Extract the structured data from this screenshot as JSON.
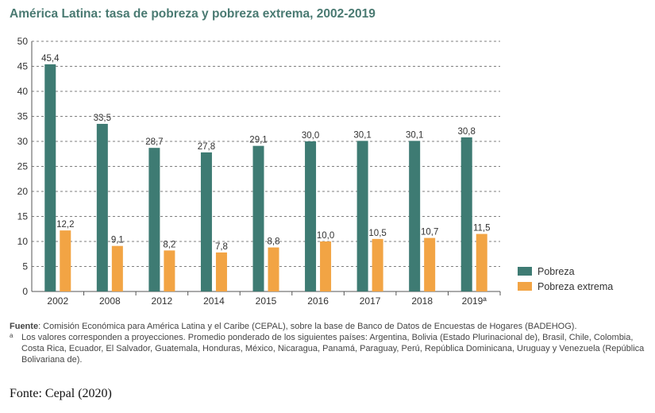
{
  "title": "América Latina: tasa de pobreza y pobreza extrema, 2002-2019",
  "chart_data": {
    "type": "bar",
    "categories": [
      "2002",
      "2008",
      "2012",
      "2014",
      "2015",
      "2016",
      "2017",
      "2018",
      "2019ª"
    ],
    "series": [
      {
        "name": "Pobreza",
        "color": "#3e7b73",
        "values": [
          45.4,
          33.5,
          28.7,
          27.8,
          29.1,
          30.0,
          30.1,
          30.1,
          30.8
        ],
        "labels": [
          "45,4",
          "33,5",
          "28,7",
          "27,8",
          "29,1",
          "30,0",
          "30,1",
          "30,1",
          "30,8"
        ]
      },
      {
        "name": "Pobreza extrema",
        "color": "#f2a444",
        "values": [
          12.2,
          9.1,
          8.2,
          7.8,
          8.8,
          10.0,
          10.5,
          10.7,
          11.5
        ],
        "labels": [
          "12,2",
          "9,1",
          "8,2",
          "7,8",
          "8,8",
          "10,0",
          "10,5",
          "10,7",
          "11,5"
        ]
      }
    ],
    "ylim": [
      0,
      50
    ],
    "yticks": [
      0,
      5,
      10,
      15,
      20,
      25,
      30,
      35,
      40,
      45,
      50
    ],
    "grid": true,
    "legend_position": "right"
  },
  "notes": {
    "source_label": "Fuente",
    "source_text": ": Comisión Económica para América Latina y el Caribe (CEPAL), sobre la base de Banco de Datos de Encuestas de Hogares (BADEHOG).",
    "footnote_mark": "a",
    "footnote_text": "Los valores corresponden a proyecciones. Promedio ponderado de los siguientes países: Argentina, Bolivia (Estado Plurinacional de), Brasil, Chile, Colombia, Costa Rica, Ecuador, El Salvador, Guatemala, Honduras, México, Nicaragua, Panamá, Paraguay, Perú, República Dominicana, Uruguay y Venezuela (República Bolivariana de)."
  },
  "caption": "Fonte: Cepal (2020)"
}
